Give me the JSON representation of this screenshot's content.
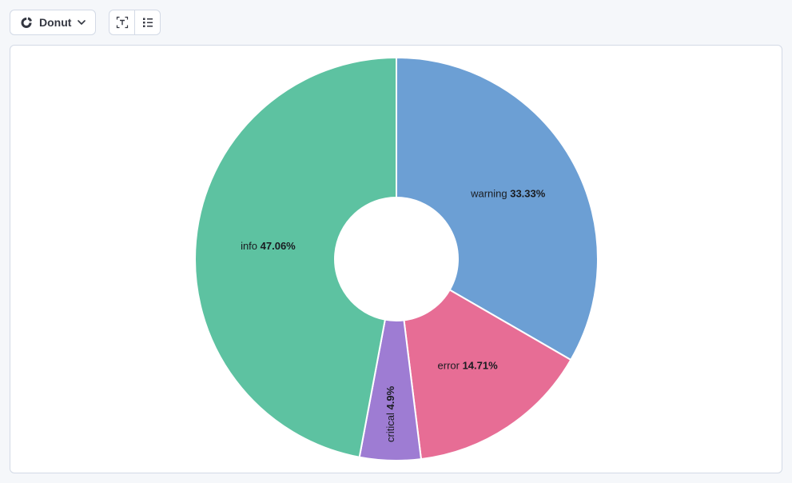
{
  "page": {
    "background_color": "#f5f7fa",
    "panel_border_color": "#d3dae6"
  },
  "toolbar": {
    "chart_type_button": {
      "label": "Donut",
      "icon": "donut-chart-icon",
      "chevron_icon": "chevron-down-icon"
    },
    "option_buttons": [
      {
        "icon": "text-labels-icon"
      },
      {
        "icon": "legend-list-icon"
      }
    ]
  },
  "chart_data": {
    "type": "pie",
    "subtype": "donut",
    "title": "",
    "legend": "none",
    "start_angle_deg": 0,
    "direction": "clockwise",
    "inner_radius_ratio": 0.305,
    "slice_border_color": "#ffffff",
    "label_color": "#1a1c21",
    "slices": [
      {
        "label": "warning",
        "value": 33.33,
        "display": "33.33%",
        "color": "#6c9fd4"
      },
      {
        "label": "error",
        "value": 14.71,
        "display": "14.71%",
        "color": "#e76d95"
      },
      {
        "label": "critical",
        "value": 4.9,
        "display": "4.9%",
        "color": "#9e7cd3"
      },
      {
        "label": "info",
        "value": 47.06,
        "display": "47.06%",
        "color": "#5dc2a1"
      }
    ]
  }
}
